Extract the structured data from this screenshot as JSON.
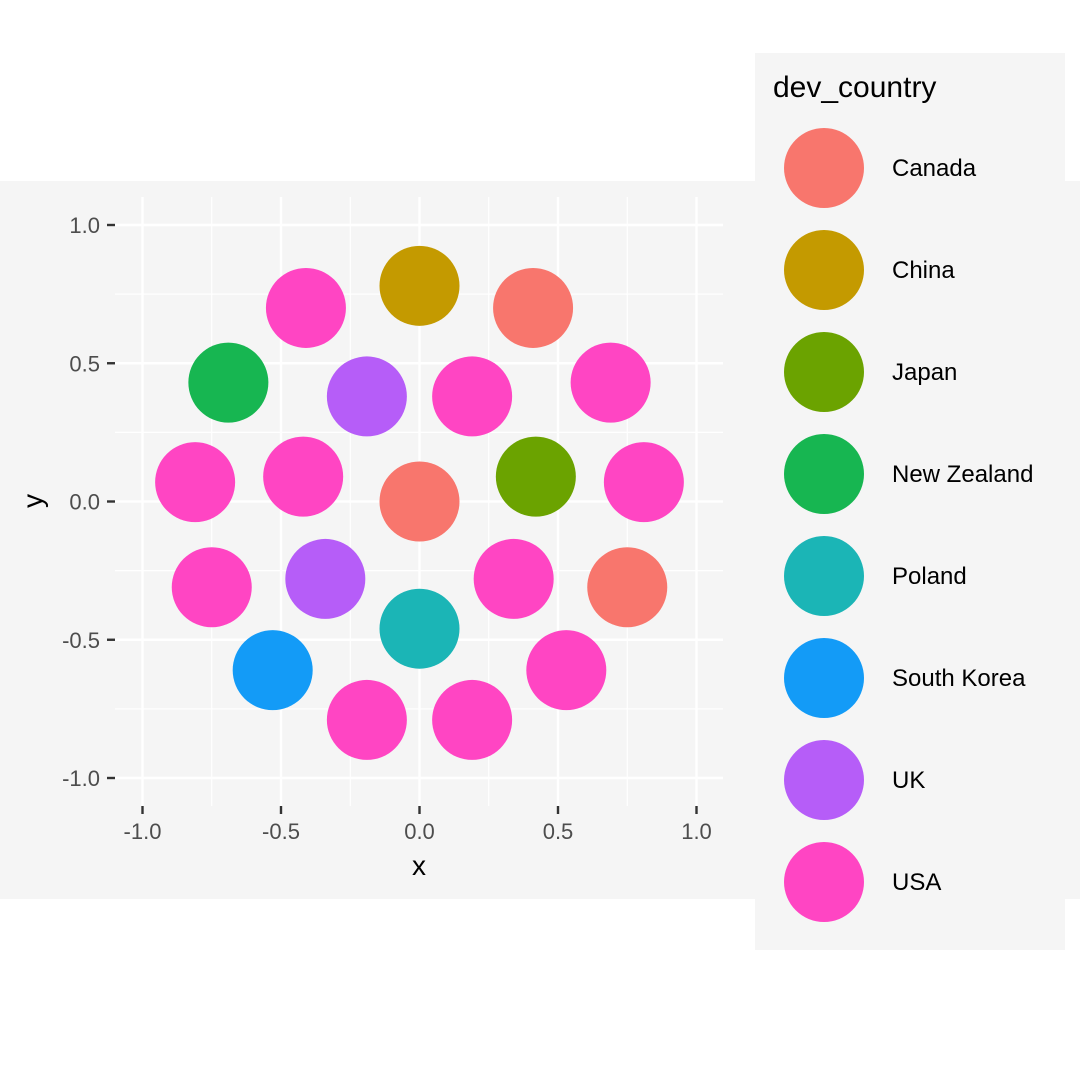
{
  "chart_data": {
    "type": "scatter",
    "title": "",
    "xlabel": "x",
    "ylabel": "y",
    "xlim": [
      -1.0,
      1.0
    ],
    "ylim": [
      -1.0,
      1.0
    ],
    "x_ticks": [
      -1.0,
      -0.5,
      0.0,
      0.5,
      1.0
    ],
    "y_ticks": [
      -1.0,
      -0.5,
      0.0,
      0.5,
      1.0
    ],
    "x_tick_labels": [
      "-1.0",
      "-0.5",
      "0.0",
      "0.5",
      "1.0"
    ],
    "y_tick_labels": [
      "-1.0",
      "-0.5",
      "0.0",
      "0.5",
      "1.0"
    ],
    "grid": true,
    "legend": {
      "title": "dev_country",
      "placement": "right",
      "entries": [
        {
          "name": "Canada",
          "color": "#F8766D"
        },
        {
          "name": "China",
          "color": "#C49A00"
        },
        {
          "name": "Japan",
          "color": "#6BA300"
        },
        {
          "name": "New Zealand",
          "color": "#17B651"
        },
        {
          "name": "Poland",
          "color": "#1BB5B6"
        },
        {
          "name": "South Korea",
          "color": "#139BF7"
        },
        {
          "name": "UK",
          "color": "#B65DF8"
        },
        {
          "name": "USA",
          "color": "#FF45C3"
        }
      ]
    },
    "points": [
      {
        "x": 0.0,
        "y": 0.0,
        "group": "Canada"
      },
      {
        "x": 0.42,
        "y": 0.09,
        "group": "Japan"
      },
      {
        "x": 0.19,
        "y": 0.38,
        "group": "USA"
      },
      {
        "x": -0.19,
        "y": 0.38,
        "group": "UK"
      },
      {
        "x": -0.42,
        "y": 0.09,
        "group": "USA"
      },
      {
        "x": -0.34,
        "y": -0.28,
        "group": "UK"
      },
      {
        "x": 0.0,
        "y": -0.46,
        "group": "Poland"
      },
      {
        "x": 0.34,
        "y": -0.28,
        "group": "USA"
      },
      {
        "x": 0.0,
        "y": 0.78,
        "group": "China"
      },
      {
        "x": 0.41,
        "y": 0.7,
        "group": "Canada"
      },
      {
        "x": 0.69,
        "y": 0.43,
        "group": "USA"
      },
      {
        "x": 0.81,
        "y": 0.07,
        "group": "USA"
      },
      {
        "x": 0.75,
        "y": -0.31,
        "group": "Canada"
      },
      {
        "x": 0.53,
        "y": -0.61,
        "group": "USA"
      },
      {
        "x": 0.19,
        "y": -0.79,
        "group": "USA"
      },
      {
        "x": -0.19,
        "y": -0.79,
        "group": "USA"
      },
      {
        "x": -0.53,
        "y": -0.61,
        "group": "South Korea"
      },
      {
        "x": -0.75,
        "y": -0.31,
        "group": "USA"
      },
      {
        "x": -0.81,
        "y": 0.07,
        "group": "USA"
      },
      {
        "x": -0.69,
        "y": 0.43,
        "group": "New Zealand"
      },
      {
        "x": -0.41,
        "y": 0.7,
        "group": "USA"
      }
    ]
  }
}
